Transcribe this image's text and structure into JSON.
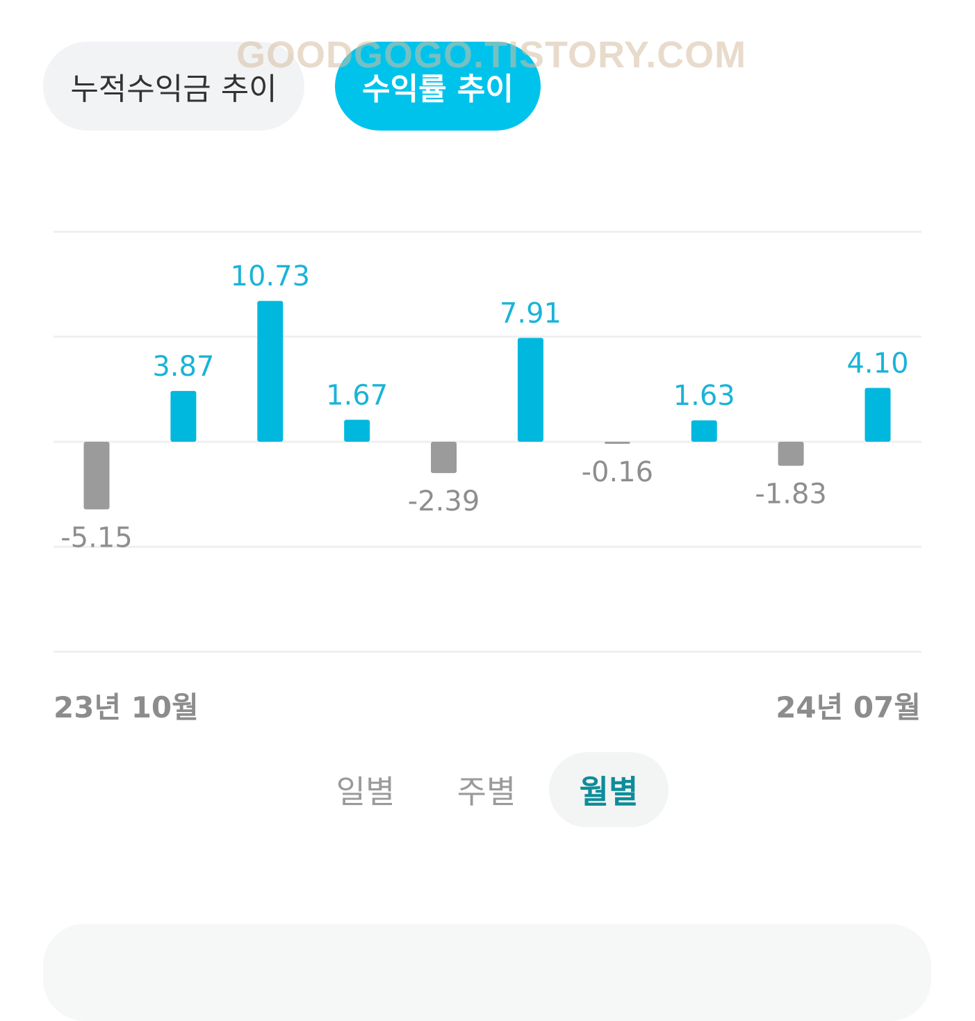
{
  "tabs": {
    "cumulative_label": "누적수익금 추이",
    "rate_label": "수익률 추이"
  },
  "watermark": "GOODGOGO.TISTORY.COM",
  "date_range": {
    "start": "23년 10월",
    "end": "24년 07월"
  },
  "periods": {
    "daily": "일별",
    "weekly": "주별",
    "monthly": "월별"
  },
  "colors": {
    "positive": "#00b8de",
    "negative": "#9b9b9b",
    "positive_label": "#1ab3d8",
    "negative_label": "#8e8e8e",
    "grid": "#efefef"
  },
  "chart_data": {
    "type": "bar",
    "title": "",
    "xlabel": "",
    "ylabel": "",
    "values": [
      -5.15,
      3.87,
      10.73,
      1.67,
      -2.39,
      7.91,
      -0.16,
      1.63,
      -1.83,
      4.1
    ],
    "value_labels": [
      "-5.15",
      "3.87",
      "10.73",
      "1.67",
      "-2.39",
      "7.91",
      "-0.16",
      "1.63",
      "-1.83",
      "4.10"
    ],
    "ylim": [
      -16,
      16
    ],
    "grid": true
  }
}
